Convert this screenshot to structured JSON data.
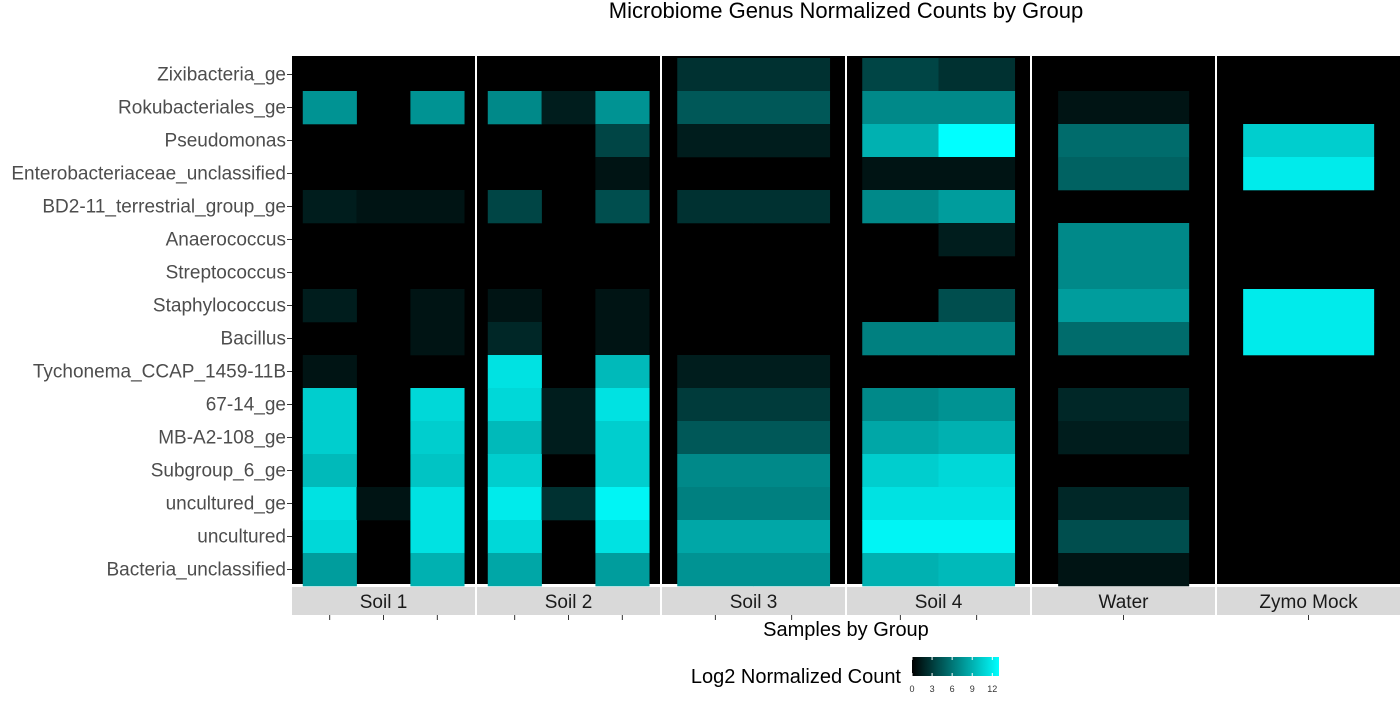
{
  "chart_data": {
    "type": "heatmap",
    "title": "Microbiome Genus Normalized Counts by Group",
    "xlabel": "Samples by Group",
    "ylabel": "",
    "rows": [
      "Zixibacteria_ge",
      "Rokubacteriales_ge",
      "Pseudomonas",
      "Enterobacteriaceae_unclassified",
      "BD2-11_terrestrial_group_ge",
      "Anaerococcus",
      "Streptococcus",
      "Staphylococcus",
      "Bacillus",
      "Tychonema_CCAP_1459-11B",
      "67-14_ge",
      "MB-A2-108_ge",
      "Subgroup_6_ge",
      "uncultured_ge",
      "uncultured",
      "Bacteria_unclassified"
    ],
    "panels": [
      {
        "label": "Soil 1",
        "samples": 3,
        "values": [
          [
            0,
            0,
            0
          ],
          [
            7.5,
            0,
            7.5
          ],
          [
            0,
            0,
            0
          ],
          [
            0,
            0,
            0
          ],
          [
            1.5,
            1,
            1
          ],
          [
            0,
            0,
            0
          ],
          [
            0,
            0,
            0
          ],
          [
            1.5,
            0,
            1
          ],
          [
            0,
            0,
            1
          ],
          [
            1,
            0,
            0
          ],
          [
            10.5,
            0,
            11
          ],
          [
            10.5,
            0,
            10.5
          ],
          [
            9.5,
            0,
            10
          ],
          [
            11.5,
            1,
            11.5
          ],
          [
            11,
            0,
            11.5
          ],
          [
            8,
            0,
            9
          ]
        ]
      },
      {
        "label": "Soil 2",
        "samples": 3,
        "values": [
          [
            0,
            0,
            0
          ],
          [
            7,
            1.5,
            7.5
          ],
          [
            0,
            0,
            3.5
          ],
          [
            0,
            0,
            1
          ],
          [
            3.5,
            0,
            4
          ],
          [
            0,
            0,
            0
          ],
          [
            0,
            0,
            0
          ],
          [
            1,
            0,
            1
          ],
          [
            2,
            0,
            1
          ],
          [
            11.5,
            0,
            9.5
          ],
          [
            11,
            1.5,
            11.5
          ],
          [
            9.5,
            1.5,
            10.5
          ],
          [
            10.5,
            0,
            10.5
          ],
          [
            12,
            2.5,
            12.5
          ],
          [
            11,
            0,
            11.5
          ],
          [
            8.5,
            0,
            8
          ]
        ]
      },
      {
        "label": "Soil 3",
        "samples": 2,
        "values": [
          [
            2.5,
            2.5
          ],
          [
            4.5,
            4.5
          ],
          [
            1.5,
            1.5
          ],
          [
            0,
            0
          ],
          [
            2.5,
            2.5
          ],
          [
            0,
            0
          ],
          [
            0,
            0
          ],
          [
            0,
            0
          ],
          [
            0,
            0
          ],
          [
            1.5,
            1.5
          ],
          [
            3,
            3
          ],
          [
            4.5,
            4.5
          ],
          [
            7,
            7
          ],
          [
            6.5,
            6.5
          ],
          [
            8.5,
            8.5
          ],
          [
            7.5,
            7.5
          ]
        ]
      },
      {
        "label": "Soil 4",
        "samples": 2,
        "values": [
          [
            3.5,
            2.5
          ],
          [
            7,
            7
          ],
          [
            9,
            13
          ],
          [
            1,
            1
          ],
          [
            7,
            8
          ],
          [
            0,
            1.5
          ],
          [
            0,
            0
          ],
          [
            0,
            4
          ],
          [
            6.5,
            6.5
          ],
          [
            0,
            0
          ],
          [
            7,
            7.5
          ],
          [
            8.5,
            9
          ],
          [
            10.5,
            11
          ],
          [
            11.5,
            11.5
          ],
          [
            12.5,
            12.5
          ],
          [
            9,
            9.5
          ]
        ]
      },
      {
        "label": "Water",
        "samples": 1,
        "values": [
          [
            0
          ],
          [
            1
          ],
          [
            5.5
          ],
          [
            5
          ],
          [
            0
          ],
          [
            7
          ],
          [
            7
          ],
          [
            8
          ],
          [
            5.5
          ],
          [
            0
          ],
          [
            2
          ],
          [
            1.5
          ],
          [
            0
          ],
          [
            2
          ],
          [
            4
          ],
          [
            1
          ]
        ]
      },
      {
        "label": "Zymo Mock",
        "samples": 1,
        "values": [
          [
            0
          ],
          [
            0
          ],
          [
            10.5
          ],
          [
            12
          ],
          [
            0
          ],
          [
            0
          ],
          [
            0
          ],
          [
            12
          ],
          [
            12
          ],
          [
            0
          ],
          [
            0
          ],
          [
            0
          ],
          [
            0
          ],
          [
            0
          ],
          [
            0
          ],
          [
            0
          ]
        ]
      }
    ],
    "legend": {
      "title": "Log2 Normalized Count",
      "ticks": [
        0,
        3,
        6,
        9,
        12
      ],
      "range": [
        0,
        13
      ],
      "color_low": "#000000",
      "color_high": "#00ffff",
      "placement": "bottom"
    },
    "colors": {
      "strip_background": "#d9d9d9",
      "panel_separator": "#ffffff",
      "text": "#1a1a1a",
      "axis_text": "#4d4d4d"
    }
  }
}
